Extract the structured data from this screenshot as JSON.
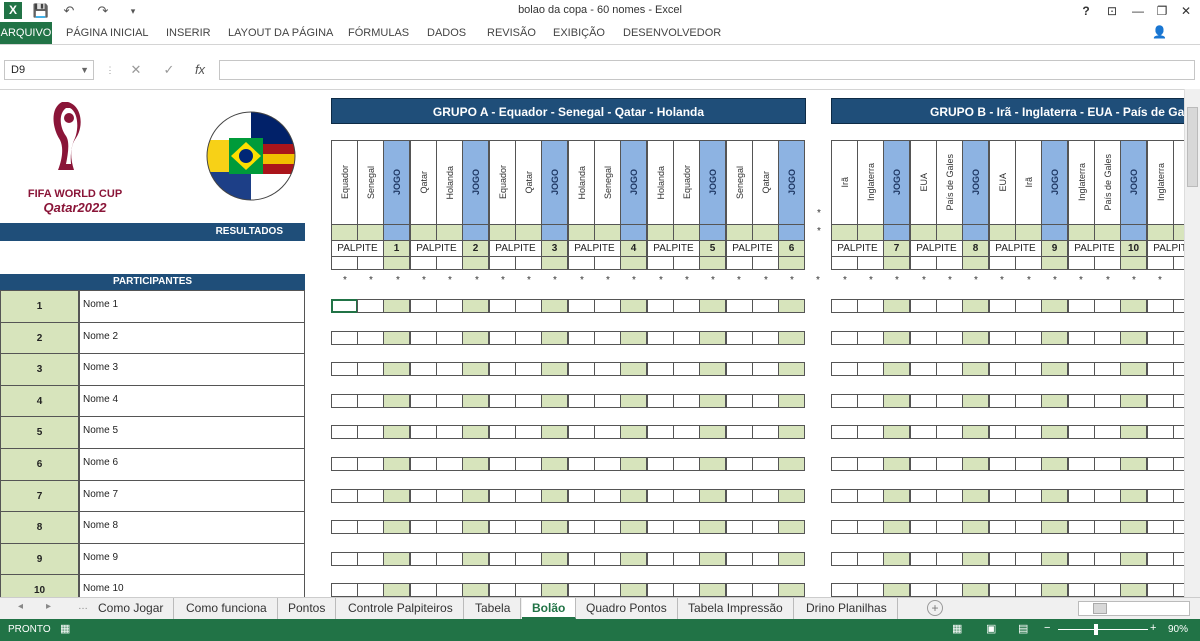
{
  "window": {
    "title": "bolao da copa - 60 nomes - Excel",
    "help": "?",
    "controls": [
      "⊡",
      "—",
      "❐",
      "✕"
    ],
    "user_icon": "user-icon"
  },
  "ribbon": {
    "file": "ARQUIVO",
    "tabs": [
      "PÁGINA INICIAL",
      "INSERIR",
      "LAYOUT DA PÁGINA",
      "FÓRMULAS",
      "DADOS",
      "REVISÃO",
      "EXIBIÇÃO",
      "DESENVOLVEDOR"
    ]
  },
  "formula_bar": {
    "name_box": "D9",
    "formula": "",
    "fx": "fx",
    "cancel": "✕",
    "enter": "✓"
  },
  "logo": {
    "line1": "FIFA WORLD CUP",
    "line2": "Qatar2022"
  },
  "labels": {
    "resultados": "RESULTADOS",
    "participantes": "PARTICIPANTES",
    "palpite": "PALPITE",
    "jogo": "JOGO",
    "star": "*"
  },
  "groups": [
    {
      "title": "GRUPO  A - Equador - Senegal - Qatar - Holanda",
      "matches": [
        {
          "home": "Equador",
          "away": "Senegal",
          "num": "1"
        },
        {
          "home": "Qatar",
          "away": "Holanda",
          "num": "2"
        },
        {
          "home": "Equador",
          "away": "Qatar",
          "num": "3"
        },
        {
          "home": "Holanda",
          "away": "Senegal",
          "num": "4"
        },
        {
          "home": "Holanda",
          "away": "Equador",
          "num": "5"
        },
        {
          "home": "Senegal",
          "away": "Qatar",
          "num": "6"
        }
      ]
    },
    {
      "title": "GRUPO  B - Irã - Inglaterra - EUA - País de Gales",
      "matches": [
        {
          "home": "Irã",
          "away": "Inglaterra",
          "num": "7"
        },
        {
          "home": "EUA",
          "away": "País de Gales",
          "num": "8"
        },
        {
          "home": "EUA",
          "away": "Irã",
          "num": "9"
        },
        {
          "home": "Inglaterra",
          "away": "País de Gales",
          "num": "10"
        },
        {
          "home": "Inglaterra",
          "away": "",
          "num": ""
        }
      ]
    }
  ],
  "participants": [
    {
      "num": "1",
      "name": "Nome 1"
    },
    {
      "num": "2",
      "name": "Nome 2"
    },
    {
      "num": "3",
      "name": "Nome 3"
    },
    {
      "num": "4",
      "name": "Nome 4"
    },
    {
      "num": "5",
      "name": "Nome 5"
    },
    {
      "num": "6",
      "name": "Nome 6"
    },
    {
      "num": "7",
      "name": "Nome 7"
    },
    {
      "num": "8",
      "name": "Nome 8"
    },
    {
      "num": "9",
      "name": "Nome 9"
    },
    {
      "num": "10",
      "name": "Nome 10"
    }
  ],
  "sheet_tabs": [
    "Como Jogar",
    "Como funciona",
    "Pontos",
    "Controle Palpiteiros",
    "Tabela",
    "Bolão",
    "Quadro Pontos",
    "Tabela Impressão",
    "Drino Planilhas"
  ],
  "active_tab": "Bolão",
  "status": {
    "mode": "PRONTO",
    "zoom": "90%"
  },
  "colors": {
    "excel_green": "#217346",
    "header_blue": "#1f4e79",
    "cell_green": "#d7e4bc",
    "jogo_blue": "#8db3e2"
  }
}
